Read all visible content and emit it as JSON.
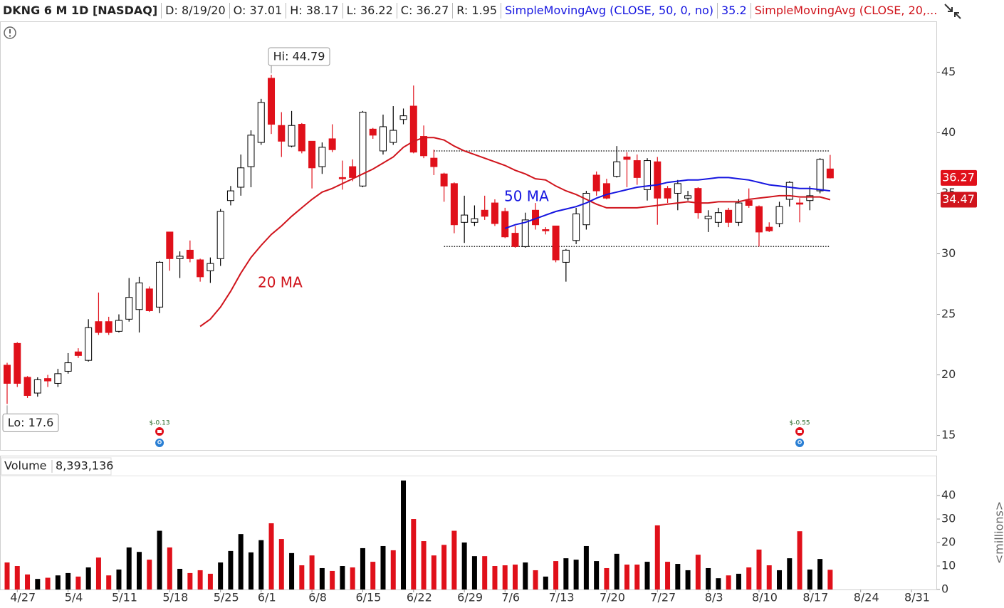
{
  "header": {
    "symbol": "DKNG 6 M 1D [NASDAQ]",
    "date_label": "D:",
    "date": "8/19/20",
    "open_label": "O:",
    "high_label": "H:",
    "low_label": "L:",
    "close_label": "C:",
    "range_label": "R:",
    "range": 1.95,
    "study1": "SimpleMovingAvg (CLOSE, 50, 0, no)",
    "study2": "SimpleMovingAvg (CLOSE, 20,..."
  },
  "chart_data": {
    "type": "candlestick",
    "categories": [
      null,
      "4/27",
      null,
      null,
      null,
      null,
      "5/4",
      null,
      null,
      null,
      null,
      "5/11",
      null,
      null,
      null,
      null,
      "5/18",
      null,
      null,
      null,
      null,
      "5/25",
      null,
      null,
      null,
      "6/1",
      null,
      null,
      null,
      null,
      "6/8",
      null,
      null,
      null,
      null,
      "6/15",
      null,
      null,
      null,
      null,
      "6/22",
      null,
      null,
      null,
      null,
      "6/29",
      null,
      null,
      null,
      "7/6",
      null,
      null,
      null,
      null,
      "7/13",
      null,
      null,
      null,
      null,
      "7/20",
      null,
      null,
      null,
      null,
      "7/27",
      null,
      null,
      null,
      null,
      "8/3",
      null,
      null,
      null,
      null,
      "8/10",
      null,
      null,
      null,
      null,
      "8/17",
      null,
      null,
      null,
      null,
      "8/24",
      null,
      null,
      null,
      null,
      "8/31"
    ],
    "open": [
      20.8,
      22.6,
      19.8,
      18.5,
      19.7,
      19.3,
      20.3,
      21.9,
      21.2,
      24.4,
      24.4,
      23.6,
      24.6,
      25.4,
      27.1,
      25.6,
      31.8,
      29.6,
      30.3,
      29.5,
      28.6,
      29.6,
      34.4,
      35.5,
      37.2,
      39.2,
      44.5,
      40.6,
      38.9,
      40.7,
      39.3,
      37.2,
      39.5,
      36.3,
      37.2,
      35.6,
      40.3,
      38.5,
      39.2,
      41.1,
      42.2,
      39.7,
      37.9,
      36.6,
      35.8,
      32.6,
      32.6,
      33.6,
      34.2,
      33.5,
      31.7,
      30.6,
      33.6,
      32.0,
      32.3,
      29.3,
      31.1,
      32.4,
      36.5,
      35.8,
      36.4,
      38.0,
      37.7,
      35.3,
      37.6,
      35.4,
      35.0,
      34.6,
      35.4,
      32.9,
      32.6,
      33.6,
      32.6,
      34.4,
      33.9,
      32.2,
      32.5,
      34.5,
      34.2,
      34.4,
      35.2,
      37.01,
      null,
      null,
      null,
      null,
      null,
      null,
      null,
      null
    ],
    "high": [
      21.0,
      22.7,
      19.9,
      19.8,
      20.0,
      20.5,
      21.8,
      22.2,
      24.6,
      26.8,
      24.8,
      25.0,
      28.0,
      28.1,
      27.3,
      29.4,
      31.8,
      30.2,
      31.1,
      29.6,
      29.7,
      33.7,
      35.6,
      38.2,
      40.2,
      42.8,
      44.79,
      41.7,
      41.8,
      40.8,
      39.3,
      39.2,
      40.7,
      37.7,
      37.8,
      41.8,
      40.4,
      41.5,
      42.2,
      42.0,
      43.9,
      40.6,
      38.6,
      36.7,
      35.9,
      34.8,
      34.0,
      34.8,
      34.5,
      33.8,
      32.3,
      33.4,
      34.2,
      32.2,
      32.3,
      30.4,
      33.8,
      35.2,
      36.8,
      36.2,
      38.9,
      38.4,
      38.2,
      37.9,
      38.0,
      35.6,
      36.1,
      35.2,
      35.5,
      33.6,
      33.8,
      33.8,
      34.5,
      35.4,
      34.0,
      32.6,
      34.3,
      36.0,
      34.6,
      35.6,
      37.9,
      38.17,
      null,
      null,
      null,
      null,
      null,
      null,
      null,
      null
    ],
    "low": [
      17.6,
      19.0,
      18.1,
      18.2,
      19.0,
      19.0,
      20.1,
      21.4,
      21.1,
      23.3,
      23.3,
      23.5,
      24.4,
      23.5,
      25.2,
      25.1,
      28.6,
      28.0,
      29.3,
      27.7,
      27.6,
      29.0,
      34.0,
      34.8,
      35.5,
      39.0,
      39.9,
      38.0,
      38.8,
      38.3,
      35.4,
      36.6,
      38.4,
      35.3,
      36.0,
      35.5,
      39.5,
      38.2,
      39.0,
      40.7,
      38.3,
      37.9,
      36.5,
      34.3,
      31.7,
      30.9,
      32.3,
      32.8,
      32.3,
      31.3,
      30.5,
      30.5,
      32.0,
      31.6,
      29.3,
      27.7,
      30.8,
      32.0,
      34.8,
      34.5,
      36.3,
      35.5,
      35.7,
      34.4,
      32.4,
      34.2,
      33.6,
      34.4,
      32.9,
      31.8,
      32.2,
      32.2,
      32.3,
      33.8,
      30.6,
      31.8,
      32.2,
      33.9,
      32.6,
      33.6,
      35.0,
      36.22,
      null,
      null,
      null,
      null,
      null,
      null,
      null,
      null
    ],
    "close": [
      19.3,
      19.3,
      18.3,
      19.6,
      19.5,
      20.1,
      21.0,
      21.6,
      23.9,
      23.5,
      23.5,
      24.5,
      26.4,
      27.6,
      25.3,
      29.3,
      29.6,
      29.8,
      29.6,
      28.1,
      29.2,
      33.5,
      35.2,
      37.1,
      39.8,
      42.5,
      40.7,
      39.3,
      40.6,
      38.5,
      37.1,
      38.8,
      38.6,
      36.2,
      36.3,
      41.7,
      39.8,
      40.5,
      40.2,
      41.4,
      38.4,
      38.1,
      37.2,
      35.6,
      32.4,
      33.2,
      32.9,
      33.1,
      32.5,
      31.4,
      30.6,
      32.8,
      32.4,
      31.9,
      29.5,
      30.3,
      33.3,
      35.0,
      35.2,
      34.6,
      37.6,
      37.8,
      36.3,
      37.7,
      34.6,
      34.6,
      35.8,
      34.8,
      33.4,
      33.1,
      33.4,
      32.6,
      34.2,
      34.0,
      31.8,
      31.9,
      33.9,
      35.9,
      34.1,
      34.8,
      37.8,
      36.27,
      null,
      null,
      null,
      null,
      null,
      null,
      null,
      null
    ],
    "up_color": "#ffffff",
    "down_color": "#e0101a",
    "outline_color": "#000000",
    "ylim": [
      13.8,
      49.2
    ],
    "yticks": [
      15,
      20,
      25,
      30,
      35,
      40,
      45
    ],
    "ma": [
      {
        "name": "20 MA",
        "color": "#d0141c",
        "values": [
          null,
          null,
          null,
          null,
          null,
          null,
          null,
          null,
          null,
          null,
          null,
          null,
          null,
          null,
          null,
          null,
          null,
          null,
          null,
          24.0,
          24.6,
          25.6,
          26.9,
          28.4,
          29.7,
          30.7,
          31.6,
          32.3,
          33.1,
          33.8,
          34.5,
          35.1,
          35.4,
          35.8,
          36.2,
          36.6,
          37.0,
          37.5,
          38.0,
          38.8,
          39.3,
          39.6,
          39.6,
          39.4,
          38.9,
          38.5,
          38.2,
          37.9,
          37.6,
          37.3,
          36.9,
          36.6,
          36.2,
          36.1,
          35.6,
          35.2,
          34.9,
          34.5,
          34.1,
          33.8,
          33.8,
          33.8,
          33.8,
          33.9,
          34.0,
          34.1,
          34.2,
          34.3,
          34.2,
          34.2,
          34.3,
          34.3,
          34.3,
          34.5,
          34.6,
          34.7,
          34.8,
          34.8,
          34.7,
          34.7,
          34.7,
          34.47,
          null,
          null,
          null,
          null,
          null,
          null,
          null,
          null
        ]
      },
      {
        "name": "50 MA",
        "color": "#1515e0",
        "values": [
          null,
          null,
          null,
          null,
          null,
          null,
          null,
          null,
          null,
          null,
          null,
          null,
          null,
          null,
          null,
          null,
          null,
          null,
          null,
          null,
          null,
          null,
          null,
          null,
          null,
          null,
          null,
          null,
          null,
          null,
          null,
          null,
          null,
          null,
          null,
          null,
          null,
          null,
          null,
          null,
          null,
          null,
          null,
          null,
          null,
          null,
          null,
          null,
          null,
          32.1,
          32.4,
          32.6,
          32.9,
          33.2,
          33.5,
          33.7,
          33.9,
          34.2,
          34.6,
          34.9,
          35.1,
          35.3,
          35.5,
          35.6,
          35.7,
          35.9,
          36.0,
          36.1,
          36.1,
          36.2,
          36.3,
          36.3,
          36.2,
          36.1,
          35.9,
          35.7,
          35.6,
          35.5,
          35.4,
          35.4,
          35.3,
          35.2,
          null,
          null,
          null,
          null,
          null,
          null,
          null,
          null
        ]
      }
    ],
    "levels": [
      {
        "value": 38.5,
        "start": 42,
        "end": 81
      },
      {
        "value": 30.6,
        "start": 43,
        "end": 81
      }
    ],
    "events": [
      {
        "index": 15,
        "label": "$-0.13"
      },
      {
        "index": 78,
        "label": "$-0.55"
      }
    ],
    "hi_label": "Hi: 44.79",
    "lo_label": "Lo: 17.6",
    "volume": {
      "name": "Volume",
      "ylim": [
        0,
        48.5
      ],
      "yticks": [
        0,
        10,
        20,
        30,
        40
      ],
      "axis_label": "<millions>",
      "values": [
        11.5,
        10,
        6.4,
        4.5,
        5,
        6,
        7,
        5.5,
        9.4,
        13.6,
        6,
        8.5,
        17.9,
        16,
        12.7,
        25,
        17.9,
        8.8,
        7,
        8.2,
        6.7,
        11.5,
        16.4,
        23.6,
        15.8,
        21,
        28.2,
        21.5,
        15.5,
        10.3,
        14.5,
        9.1,
        7.9,
        10,
        9.4,
        17.6,
        11.8,
        18.5,
        16.7,
        46.4,
        30,
        20.6,
        14.5,
        19,
        25,
        20,
        14.2,
        14.2,
        10,
        10.3,
        10.6,
        11.5,
        8.2,
        5.5,
        12.1,
        13.3,
        12.7,
        18.5,
        12.1,
        9.1,
        15.2,
        10.6,
        10.6,
        11.8,
        27.3,
        11.8,
        10.9,
        8.2,
        14.8,
        9.1,
        4.8,
        6,
        6.7,
        9.4,
        17,
        10.3,
        8.2,
        13.3,
        24.8,
        8.5,
        13,
        8.393136,
        null,
        null,
        null,
        null,
        null,
        null,
        null,
        null
      ],
      "value_labels": [
        null,
        null,
        null,
        null,
        null,
        null,
        null,
        null,
        null,
        null,
        null,
        null,
        null,
        null,
        null,
        null,
        null,
        null,
        null,
        null,
        null,
        null,
        null,
        null,
        null,
        null,
        null,
        null,
        null,
        null,
        null,
        null,
        null,
        null,
        null,
        null,
        null,
        null,
        null,
        null,
        null,
        null,
        null,
        null,
        null,
        null,
        null,
        null,
        null,
        null,
        null,
        null,
        null,
        null,
        null,
        null,
        null,
        null,
        null,
        null,
        null,
        null,
        null,
        null,
        null,
        null,
        null,
        null,
        null,
        null,
        null,
        null,
        null,
        null,
        null,
        null,
        null,
        null,
        null,
        null,
        null,
        "8,393,136",
        null,
        null,
        null,
        null,
        null,
        null,
        null,
        null
      ],
      "colors": [
        "#e0101a",
        "#e0101a",
        "#e0101a",
        "#000000",
        "#e0101a",
        "#000000",
        "#000000",
        "#e0101a",
        "#000000",
        "#e0101a",
        "#e0101a",
        "#000000",
        "#000000",
        "#000000",
        "#e0101a",
        "#000000",
        "#e0101a",
        "#000000",
        "#e0101a",
        "#e0101a",
        "#e0101a",
        "#000000",
        "#000000",
        "#000000",
        "#000000",
        "#000000",
        "#e0101a",
        "#e0101a",
        "#000000",
        "#e0101a",
        "#e0101a",
        "#000000",
        "#e0101a",
        "#000000",
        "#e0101a",
        "#000000",
        "#e0101a",
        "#000000",
        "#e0101a",
        "#000000",
        "#e0101a",
        "#e0101a",
        "#e0101a",
        "#e0101a",
        "#e0101a",
        "#000000",
        "#000000",
        "#e0101a",
        "#e0101a",
        "#e0101a",
        "#e0101a",
        "#000000",
        "#e0101a",
        "#000000",
        "#e0101a",
        "#000000",
        "#000000",
        "#000000",
        "#000000",
        "#e0101a",
        "#000000",
        "#e0101a",
        "#e0101a",
        "#000000",
        "#e0101a",
        "#e0101a",
        "#000000",
        "#000000",
        "#e0101a",
        "#000000",
        "#000000",
        "#e0101a",
        "#000000",
        "#e0101a",
        "#e0101a",
        "#e0101a",
        "#000000",
        "#000000",
        "#e0101a",
        "#000000",
        "#000000",
        "#e0101a",
        null,
        null,
        null,
        null,
        null,
        null,
        null,
        null
      ]
    }
  }
}
